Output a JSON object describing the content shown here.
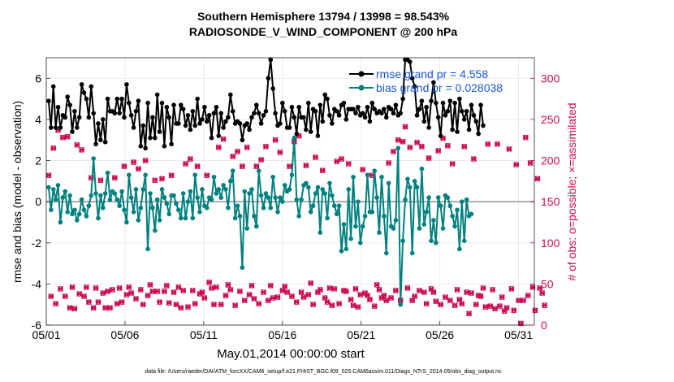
{
  "colors": {
    "rmse": "#000000",
    "bias": "#00807f",
    "obs": "#cc0a52",
    "legend_text": "#1a57e0",
    "zero_line": "#aaaaaa"
  },
  "chart_data": {
    "type": "line",
    "title": "Southern Hemisphere 13794 / 13998 = 98.543%",
    "subtitle": "RADIOSONDE_V_WIND_COMPONENT @ 200 hPa",
    "xlabel": "May.01,2014 00:00:00 start",
    "ylabel": "rmse and bias (model - observation)",
    "ylabel_right": "# of obs: o=possible; ×=assimilated",
    "footer": "data file: /Users/raeder/DAI/ATM_forcXX/CAM6_setup/f.e21.FHIST_BGC.f09_025.CAM6assim.011/Diags_NTrS_2014-05/obs_diag_output.nc",
    "x_tick_labels": [
      "05/01",
      "05/06",
      "05/11",
      "05/16",
      "05/21",
      "05/26",
      "05/31"
    ],
    "x_tick_days": [
      1,
      6,
      11,
      16,
      21,
      26,
      31
    ],
    "xlim_days": [
      1,
      32
    ],
    "ylim": [
      -6,
      7
    ],
    "y_ticks": [
      -6,
      -4,
      -2,
      0,
      2,
      4,
      6
    ],
    "ylim_right": [
      0,
      325
    ],
    "y_ticks_right": [
      0,
      50,
      100,
      150,
      200,
      250,
      300
    ],
    "legend": {
      "rmse": "rmse grand pr = 4.558",
      "bias": "bias grand pr = 0.028038"
    },
    "series": [
      {
        "name": "rmse",
        "values": [
          4.9,
          3.6,
          5.6,
          3.6,
          4.6,
          3.6,
          4.2,
          4.1,
          5.1,
          4.7,
          3.4,
          4.4,
          3.6,
          4.1,
          5.7,
          5.3,
          5.0,
          4.1,
          5.6,
          4.3,
          2.8,
          3.8,
          3.0,
          4.0,
          2.9,
          5.0,
          4.4,
          4.4,
          4.3,
          5.0,
          4.3,
          5.0,
          4.1,
          5.7,
          4.8,
          4.2,
          3.6,
          4.4,
          4.9,
          2.7,
          3.7,
          2.6,
          4.8,
          3.1,
          4.1,
          3.1,
          5.2,
          3.4,
          4.8,
          2.7,
          4.6,
          4.1,
          2.8,
          4.7,
          3.8,
          3.8,
          4.7,
          4.5,
          3.7,
          4.2,
          3.5,
          4.4,
          3.7,
          5.0,
          3.8,
          4.0,
          4.6,
          3.9,
          4.2,
          3.1,
          4.3,
          4.6,
          3.2,
          4.3,
          3.6,
          3.9,
          4.1,
          5.2,
          4.4,
          3.8,
          3.9,
          3.8,
          3.0,
          3.7,
          3.8,
          3.5,
          4.1,
          4.3,
          4.7,
          4.3,
          3.8,
          4.2,
          4.4,
          6.0,
          6.9,
          5.5,
          4.3,
          3.7,
          3.8,
          4.8,
          4.4,
          3.6,
          3.6,
          4.6,
          4.1,
          3.3,
          4.6,
          4.1,
          4.1,
          3.5,
          4.8,
          3.4,
          4.5,
          4.4,
          3.2,
          4.7,
          3.9,
          5.2,
          5.0,
          4.2,
          3.8,
          4.5,
          4.4,
          4.2,
          4.7,
          4.8,
          4.0,
          4.5,
          4.5,
          4.5,
          4.3,
          4.6,
          4.2,
          4.3,
          4.1,
          4.6,
          3.9,
          4.8,
          4.5,
          4.3,
          4.4,
          4.3,
          4.5,
          4.1,
          4.6,
          4.5,
          4.3,
          4.7,
          4.2,
          4.3,
          5.0,
          6.9,
          6.9,
          6.8,
          6.0,
          5.6,
          4.2,
          4.5,
          4.9,
          3.9,
          4.6,
          3.6,
          4.9,
          5.8,
          4.8,
          4.1,
          3.2,
          4.8,
          4.2,
          4.4,
          4.9,
          3.5,
          4.8,
          3.4,
          5.0,
          4.4,
          4.0,
          4.4,
          3.5,
          4.7,
          4.2,
          3.9,
          3.3,
          4.7,
          3.7
        ]
      },
      {
        "name": "bias",
        "values": [
          0.7,
          -0.4,
          0.6,
          0.1,
          0.8,
          -1.0,
          0.2,
          0.5,
          -0.5,
          0.3,
          -0.6,
          -0.4,
          -0.9,
          -0.6,
          0.1,
          -0.4,
          -0.7,
          -0.2,
          0.3,
          2.1,
          0.4,
          -0.8,
          0.3,
          -0.3,
          0.4,
          1.4,
          0.1,
          0.5,
          0.4,
          0.1,
          -0.2,
          0.5,
          -0.4,
          -1.0,
          1.3,
          0.2,
          -0.5,
          0.6,
          -0.9,
          -0.3,
          0.6,
          1.3,
          -2.3,
          0.4,
          -0.3,
          -1.4,
          0.1,
          -0.9,
          0.6,
          0.2,
          -0.1,
          -0.6,
          0.3,
          0.3,
          -0.1,
          -0.4,
          -0.8,
          0.4,
          -0.8,
          0.0,
          0.5,
          -0.8,
          1.3,
          0.2,
          -0.5,
          0.6,
          -0.2,
          -0.3,
          0.2,
          0.1,
          1.2,
          0.4,
          0.6,
          0.2,
          0.8,
          0.6,
          -0.3,
          1.0,
          1.5,
          -0.8,
          -0.2,
          -0.7,
          -3.2,
          0.5,
          -1.3,
          0.4,
          0.6,
          -0.7,
          -1.2,
          1.5,
          0.3,
          -0.3,
          0.4,
          0.2,
          -0.3,
          1.2,
          0.2,
          -0.5,
          0.2,
          0.0,
          0.8,
          0.5,
          0.6,
          1.3,
          3.1,
          0.1,
          -0.7,
          0.1,
          0.8,
          0.9,
          0.7,
          -0.5,
          -0.2,
          0.4,
          0.7,
          -1.5,
          0.6,
          0.4,
          -0.8,
          0.9,
          0.3,
          -0.2,
          -0.6,
          -0.2,
          -2.4,
          -1.1,
          -2.3,
          0.6,
          -1.8,
          1.2,
          -1.2,
          0.0,
          -2.0,
          -1.2,
          -0.7,
          1.3,
          -0.5,
          -0.5,
          1.5,
          0.2,
          -1.5,
          1.2,
          -0.7,
          -2.5,
          0.9,
          -1.2,
          -1.3,
          -0.9,
          2.6,
          -5.0,
          -1.9,
          0.1,
          1.1,
          0.7,
          -2.5,
          1.0,
          0.7,
          -1.3,
          1.6,
          -1.1,
          -0.5,
          0.2,
          -1.9,
          -0.9,
          -2.0,
          0.2,
          -0.2,
          -1.3,
          0.3,
          0.2,
          -0.2,
          -0.7,
          -1.2,
          -0.4,
          -2.3,
          0.0,
          -1.9,
          0.1,
          -0.7,
          -0.6
        ]
      },
      {
        "name": "obs_possible",
        "values": [
          182,
          35,
          215,
          26,
          237,
          44,
          228,
          35,
          229,
          21,
          46,
          20,
          219,
          38,
          213,
          35,
          46,
          28,
          179,
          21,
          45,
          28,
          176,
          39,
          21,
          41,
          21,
          43,
          179,
          26,
          45,
          28,
          193,
          37,
          46,
          39,
          198,
          32,
          190,
          43,
          25,
          200,
          36,
          49,
          41,
          176,
          41,
          28,
          178,
          41,
          48,
          27,
          182,
          40,
          25,
          46,
          21,
          42,
          196,
          22,
          202,
          42,
          26,
          193,
          38,
          40,
          33,
          182,
          52,
          45,
          25,
          46,
          216,
          25,
          226,
          36,
          49,
          43,
          205,
          24,
          211,
          41,
          193,
          30,
          216,
          37,
          48,
          32,
          193,
          26,
          201,
          40,
          217,
          30,
          48,
          33,
          225,
          34,
          210,
          42,
          47,
          40,
          193,
          35,
          223,
          28,
          230,
          40,
          34,
          194,
          37,
          51,
          25,
          204,
          40,
          43,
          188,
          33,
          28,
          45,
          24,
          44,
          199,
          26,
          202,
          42,
          41,
          196,
          31,
          24,
          44,
          22,
          37,
          189,
          39,
          36,
          31,
          182,
          23,
          49,
          43,
          33,
          36,
          30,
          197,
          33,
          211,
          42,
          225,
          30,
          223,
          241,
          45,
          216,
          30,
          35,
          222,
          42,
          217,
          40,
          26,
          203,
          44,
          40,
          29,
          212,
          25,
          227,
          34,
          218,
          30,
          196,
          24,
          43,
          31,
          26,
          217,
          40,
          14,
          39,
          202,
          25,
          36,
          35,
          45,
          22,
          220,
          23,
          43,
          20,
          220,
          23,
          34,
          17,
          21,
          214,
          44,
          18,
          195,
          30,
          2,
          30,
          228,
          36,
          197,
          46,
          18,
          178,
          45,
          39,
          24
        ]
      },
      {
        "name": "obs_assimilated",
        "values": [
          182,
          35,
          215,
          26,
          237,
          44,
          228,
          35,
          229,
          21,
          46,
          20,
          219,
          38,
          213,
          35,
          46,
          28,
          179,
          21,
          45,
          28,
          176,
          39,
          21,
          41,
          21,
          43,
          179,
          26,
          45,
          28,
          193,
          37,
          46,
          39,
          198,
          32,
          190,
          43,
          25,
          200,
          36,
          49,
          41,
          176,
          41,
          28,
          178,
          41,
          48,
          27,
          182,
          40,
          25,
          46,
          21,
          42,
          196,
          22,
          202,
          42,
          26,
          193,
          38,
          40,
          33,
          182,
          52,
          45,
          25,
          46,
          216,
          25,
          226,
          36,
          49,
          43,
          205,
          24,
          211,
          41,
          193,
          30,
          216,
          37,
          48,
          32,
          193,
          26,
          201,
          40,
          217,
          30,
          48,
          33,
          225,
          34,
          210,
          42,
          47,
          40,
          193,
          35,
          223,
          28,
          230,
          40,
          34,
          194,
          37,
          51,
          25,
          204,
          40,
          43,
          188,
          33,
          28,
          45,
          24,
          44,
          199,
          26,
          202,
          42,
          41,
          196,
          31,
          24,
          44,
          22,
          37,
          189,
          39,
          36,
          31,
          182,
          23,
          49,
          43,
          33,
          36,
          30,
          197,
          33,
          211,
          42,
          225,
          30,
          223,
          241,
          45,
          216,
          30,
          35,
          222,
          42,
          217,
          40,
          26,
          203,
          44,
          40,
          29,
          212,
          25,
          227,
          34,
          218,
          30,
          196,
          24,
          43,
          31,
          26,
          217,
          40,
          14,
          39,
          202,
          25,
          36,
          35,
          45,
          22,
          220,
          23,
          43,
          20,
          220,
          23,
          34,
          17,
          21,
          214,
          44,
          18,
          195,
          30,
          2,
          30,
          228,
          36,
          197,
          46,
          18,
          178,
          45,
          39,
          24
        ]
      }
    ]
  }
}
